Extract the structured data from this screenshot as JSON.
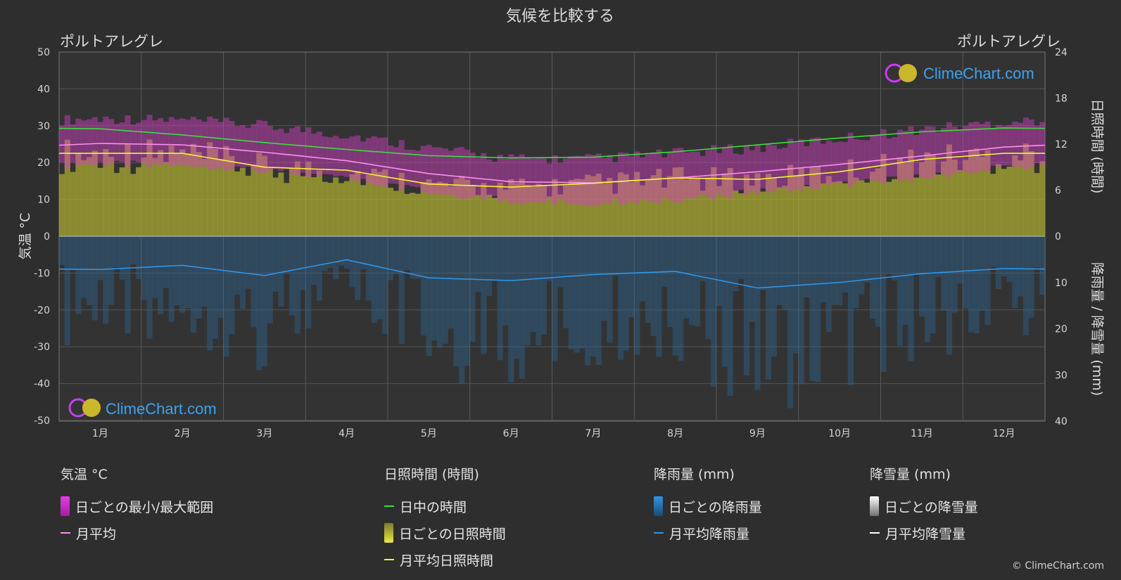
{
  "title": "気候を比較する",
  "location_left": "ポルトアレグレ",
  "location_right": "ポルトアレグレ",
  "logo_text": "ClimeChart.com",
  "copyright": "© ClimeChart.com",
  "axes": {
    "left_label": "気温 °C",
    "right_top_label": "日照時間 (時間)",
    "right_bottom_label": "降雨量 / 降雪量 (mm)",
    "left_ticks": [
      "50",
      "40",
      "30",
      "20",
      "10",
      "0",
      "-10",
      "-20",
      "-30",
      "-40",
      "-50"
    ],
    "right_top_ticks": [
      "24",
      "18",
      "12",
      "6",
      "0"
    ],
    "right_bottom_ticks": [
      "10",
      "20",
      "30",
      "40"
    ],
    "months": [
      "1月",
      "2月",
      "3月",
      "4月",
      "5月",
      "6月",
      "7月",
      "8月",
      "9月",
      "10月",
      "11月",
      "12月"
    ]
  },
  "legend": {
    "temp": {
      "title": "気温 °C",
      "range": "日ごとの最小/最大範囲",
      "avg": "月平均"
    },
    "sun": {
      "title": "日照時間 (時間)",
      "daylight": "日中の時間",
      "daily": "日ごとの日照時間",
      "avg": "月平均日照時間"
    },
    "rain": {
      "title": "降雨量 (mm)",
      "daily": "日ごとの降雨量",
      "avg": "月平均降雨量"
    },
    "snow": {
      "title": "降雪量 (mm)",
      "daily": "日ごとの降雪量",
      "avg": "月平均降雪量"
    }
  },
  "colors": {
    "background": "#2e2e2e",
    "temp_range": "#d63fc8",
    "temp_avg": "#ff8cf0",
    "daylight": "#3ddc3d",
    "sunshine": "#a8a832",
    "sunshine_avg": "#f2f23a",
    "rain": "#2a6fa8",
    "rain_avg": "#2f95e6",
    "snow_avg": "#ffffff"
  },
  "chart_data": {
    "type": "line",
    "x": [
      "1月",
      "2月",
      "3月",
      "4月",
      "5月",
      "6月",
      "7月",
      "8月",
      "9月",
      "10月",
      "11月",
      "12月"
    ],
    "temp_ylim": [
      -50,
      50
    ],
    "sun_ylim": [
      0,
      24
    ],
    "rain_ylim": [
      0,
      40
    ],
    "series": [
      {
        "name": "日中の時間",
        "axis": "sun",
        "values": [
          14.0,
          13.2,
          12.2,
          11.3,
          10.5,
          10.2,
          10.3,
          11.0,
          11.9,
          12.8,
          13.6,
          14.1
        ]
      },
      {
        "name": "月平均日照時間",
        "axis": "sun",
        "values": [
          10.8,
          10.8,
          9.0,
          8.6,
          6.8,
          6.4,
          6.9,
          7.6,
          7.4,
          8.4,
          10.0,
          10.8
        ]
      },
      {
        "name": "月平均",
        "axis": "temp",
        "values": [
          25.2,
          24.8,
          22.8,
          20.5,
          17.0,
          14.8,
          14.5,
          15.8,
          17.5,
          19.5,
          21.8,
          24.2
        ]
      },
      {
        "name": "日ごとの最小/最大範囲 max",
        "axis": "temp",
        "values": [
          30.5,
          30.0,
          28.5,
          26.0,
          22.5,
          19.5,
          19.5,
          21.0,
          22.5,
          25.0,
          27.5,
          29.5
        ]
      },
      {
        "name": "日ごとの最小/最大範囲 min",
        "axis": "temp",
        "values": [
          20.5,
          20.5,
          19.0,
          16.5,
          13.0,
          10.5,
          10.0,
          11.0,
          13.0,
          15.0,
          17.0,
          19.5
        ]
      },
      {
        "name": "月平均降雨量",
        "axis": "rain",
        "values": [
          7.2,
          6.3,
          8.5,
          5.1,
          9.0,
          9.6,
          8.3,
          7.6,
          11.2,
          10.0,
          8.1,
          7.0
        ]
      }
    ]
  }
}
